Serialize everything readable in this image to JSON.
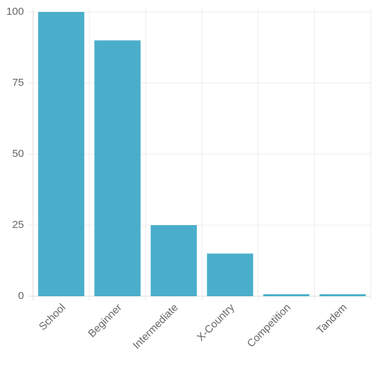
{
  "chart_data": {
    "type": "bar",
    "categories": [
      "School",
      "Beginner",
      "Intermediate",
      "X-Country",
      "Competition",
      "Tandem"
    ],
    "values": [
      100,
      90,
      25,
      15,
      0.7,
      0.7
    ],
    "color": "#4aaeca",
    "ylim": [
      0,
      100
    ],
    "yticks": [
      0,
      25,
      50,
      75,
      100
    ],
    "grid": true
  }
}
